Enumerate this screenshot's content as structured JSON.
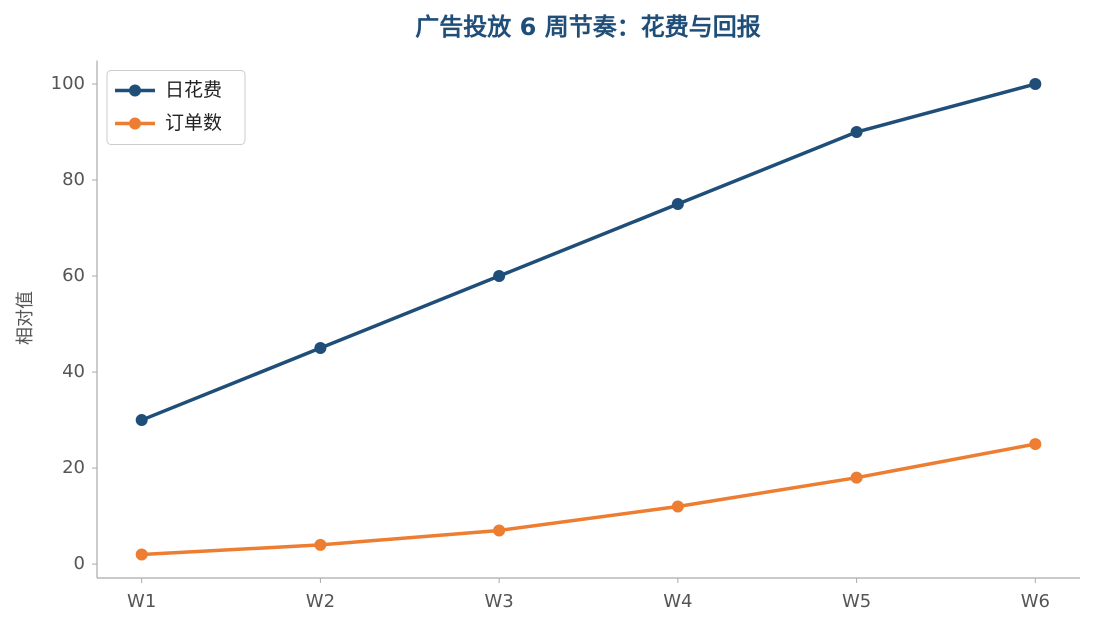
{
  "chart_data": {
    "type": "line",
    "title": "广告投放 6 周节奏：花费与回报",
    "y_label": "相对值",
    "categories": [
      "W1",
      "W2",
      "W3",
      "W4",
      "W5",
      "W6"
    ],
    "series": [
      {
        "name": "日花费",
        "color": "#1f4e79",
        "values": [
          30,
          45,
          60,
          75,
          90,
          100
        ]
      },
      {
        "name": "订单数",
        "color": "#ed7d31",
        "values": [
          2,
          4,
          7,
          12,
          18,
          25
        ]
      }
    ],
    "ylim": [
      -2.9,
      104.9
    ],
    "yticks": [
      0,
      20,
      40,
      60,
      80,
      100
    ],
    "legend": "upper left",
    "grid": false
  }
}
